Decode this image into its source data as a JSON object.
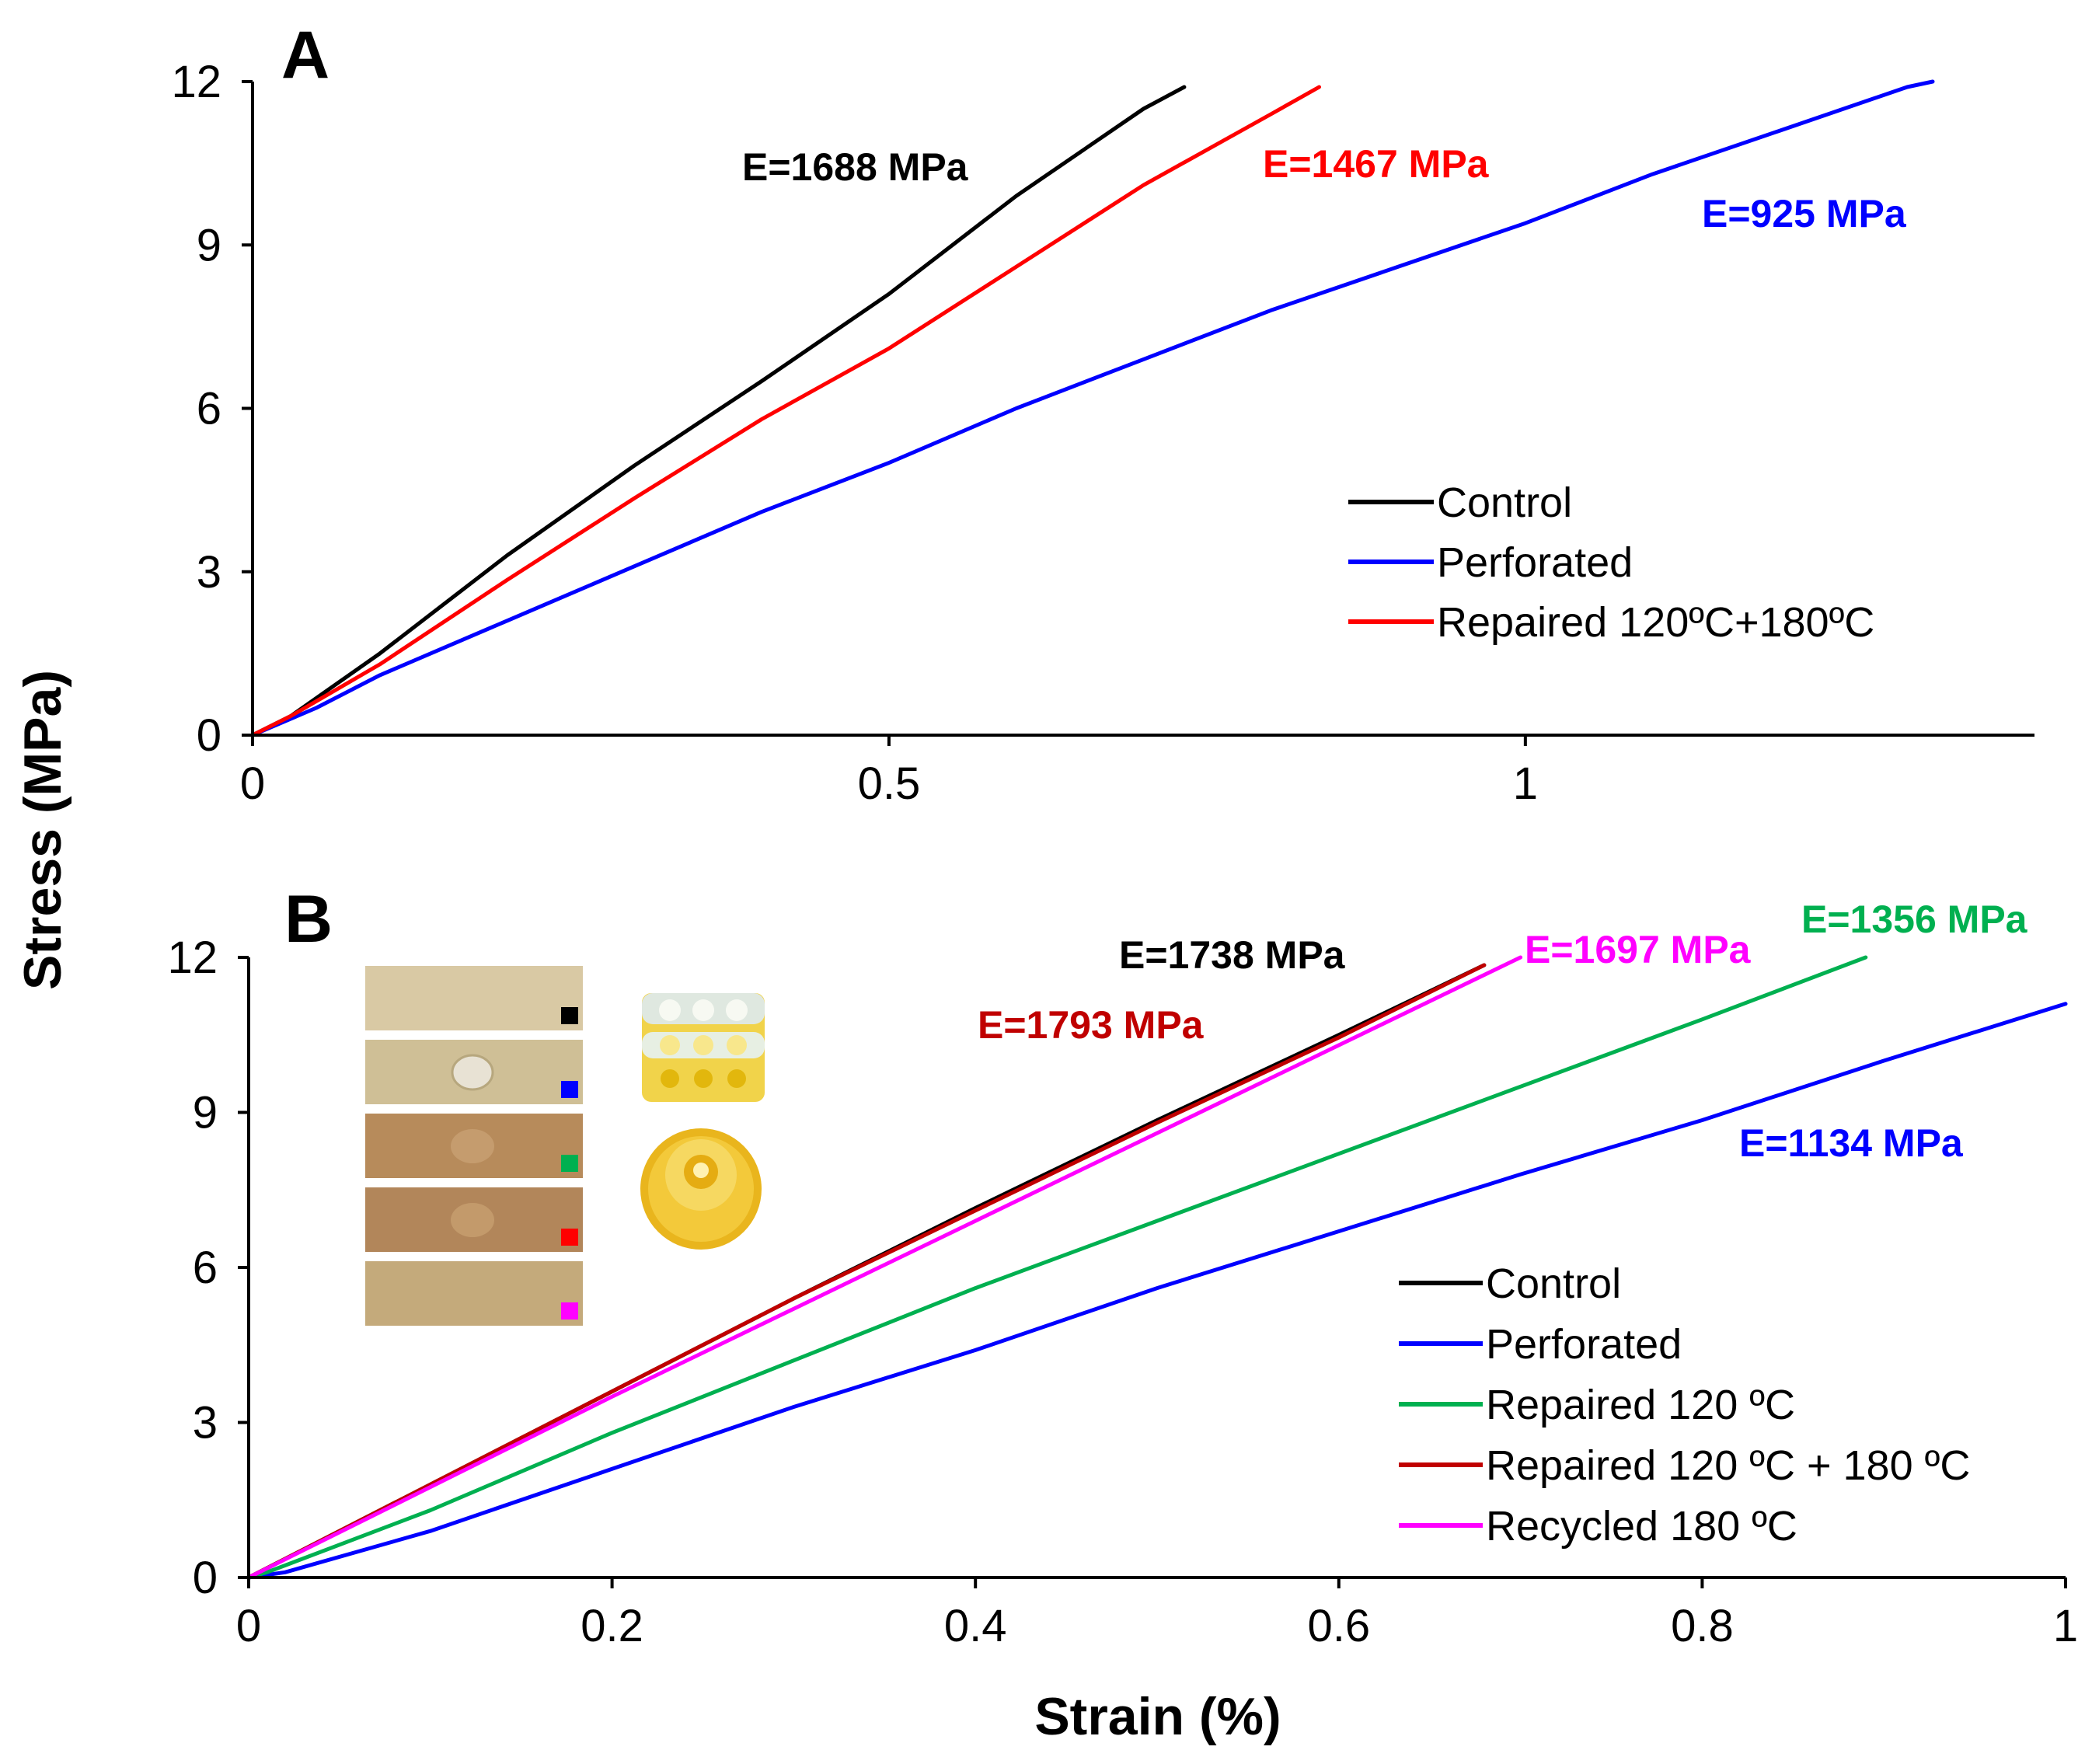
{
  "ylabel": "Stress (MPa)",
  "xlabel": "Strain (%)",
  "chart_data": [
    {
      "panel": "A",
      "type": "line",
      "xlim": [
        0,
        1.4
      ],
      "ylim": [
        0,
        12
      ],
      "xticks": [
        "0",
        "0.5",
        "1"
      ],
      "xtick_values": [
        0,
        0.5,
        1
      ],
      "yticks": [
        "0",
        "3",
        "6",
        "9",
        "12"
      ],
      "ytick_values": [
        0,
        3,
        6,
        9,
        12
      ],
      "legend_position": "right-middle",
      "series": [
        {
          "name": "Control",
          "color": "#000000",
          "x": [
            0,
            0.03,
            0.1,
            0.2,
            0.3,
            0.4,
            0.5,
            0.6,
            0.7,
            0.732
          ],
          "y": [
            0,
            0.35,
            1.5,
            3.3,
            4.95,
            6.5,
            8.1,
            9.9,
            11.5,
            11.9
          ],
          "modulus_label": "E=1688 MPa"
        },
        {
          "name": "Perforated",
          "color": "#0000ff",
          "x": [
            0,
            0.05,
            0.1,
            0.2,
            0.3,
            0.4,
            0.5,
            0.6,
            0.7,
            0.8,
            0.9,
            1.0,
            1.1,
            1.2,
            1.3,
            1.32
          ],
          "y": [
            0,
            0.5,
            1.1,
            2.1,
            3.1,
            4.1,
            5.0,
            6.0,
            6.9,
            7.8,
            8.6,
            9.4,
            10.3,
            11.1,
            11.9,
            12.0
          ],
          "modulus_label": "E=925 MPa"
        },
        {
          "name": "Repaired 120ºC+180ºC",
          "color": "#ff0000",
          "x": [
            0,
            0.03,
            0.1,
            0.2,
            0.3,
            0.4,
            0.5,
            0.6,
            0.7,
            0.8,
            0.838
          ],
          "y": [
            0,
            0.35,
            1.3,
            2.85,
            4.35,
            5.8,
            7.1,
            8.6,
            10.1,
            11.4,
            11.9
          ],
          "modulus_label": "E=1467 MPa"
        }
      ]
    },
    {
      "panel": "B",
      "type": "line",
      "xlim": [
        0,
        1.0
      ],
      "ylim": [
        0,
        12
      ],
      "xticks": [
        "0",
        "0.2",
        "0.4",
        "0.6",
        "0.8",
        "1"
      ],
      "xtick_values": [
        0,
        0.2,
        0.4,
        0.6,
        0.8,
        1.0
      ],
      "yticks": [
        "0",
        "3",
        "6",
        "9",
        "12"
      ],
      "ytick_values": [
        0,
        3,
        6,
        9,
        12
      ],
      "legend_position": "bottom-right",
      "series": [
        {
          "name": "Control",
          "color": "#000000",
          "x": [
            0,
            0.1,
            0.2,
            0.3,
            0.4,
            0.5,
            0.6,
            0.68
          ],
          "y": [
            0,
            1.8,
            3.6,
            5.4,
            7.15,
            8.85,
            10.5,
            11.85
          ],
          "modulus_label": "E=1738 MPa"
        },
        {
          "name": "Perforated",
          "color": "#0000ff",
          "x": [
            0,
            0.02,
            0.1,
            0.2,
            0.3,
            0.4,
            0.5,
            0.6,
            0.7,
            0.8,
            0.9,
            1.0
          ],
          "y": [
            0,
            0.1,
            0.9,
            2.1,
            3.3,
            4.4,
            5.6,
            6.7,
            7.8,
            8.85,
            10.0,
            11.1
          ],
          "modulus_label": "E=1134 MPa"
        },
        {
          "name": "Repaired 120 ºC",
          "color": "#00b050",
          "x": [
            0,
            0.01,
            0.1,
            0.2,
            0.3,
            0.4,
            0.5,
            0.6,
            0.7,
            0.8,
            0.89
          ],
          "y": [
            0,
            0.1,
            1.3,
            2.8,
            4.2,
            5.6,
            6.9,
            8.2,
            9.5,
            10.8,
            12.0
          ],
          "modulus_label": "E=1356 MPa"
        },
        {
          "name": "Repaired 120 ºC + 180 ºC",
          "color": "#c00000",
          "x": [
            0,
            0.1,
            0.2,
            0.3,
            0.4,
            0.5,
            0.6,
            0.68
          ],
          "y": [
            0,
            1.8,
            3.6,
            5.4,
            7.1,
            8.8,
            10.45,
            11.85
          ],
          "modulus_label": "E=1793 MPa"
        },
        {
          "name": "Recycled 180 ºC",
          "color": "#ff00ff",
          "x": [
            0,
            0.1,
            0.2,
            0.3,
            0.4,
            0.5,
            0.6,
            0.7
          ],
          "y": [
            0,
            1.75,
            3.5,
            5.2,
            6.9,
            8.6,
            10.3,
            12.0
          ],
          "modulus_label": "E=1697 MPa"
        }
      ]
    }
  ]
}
